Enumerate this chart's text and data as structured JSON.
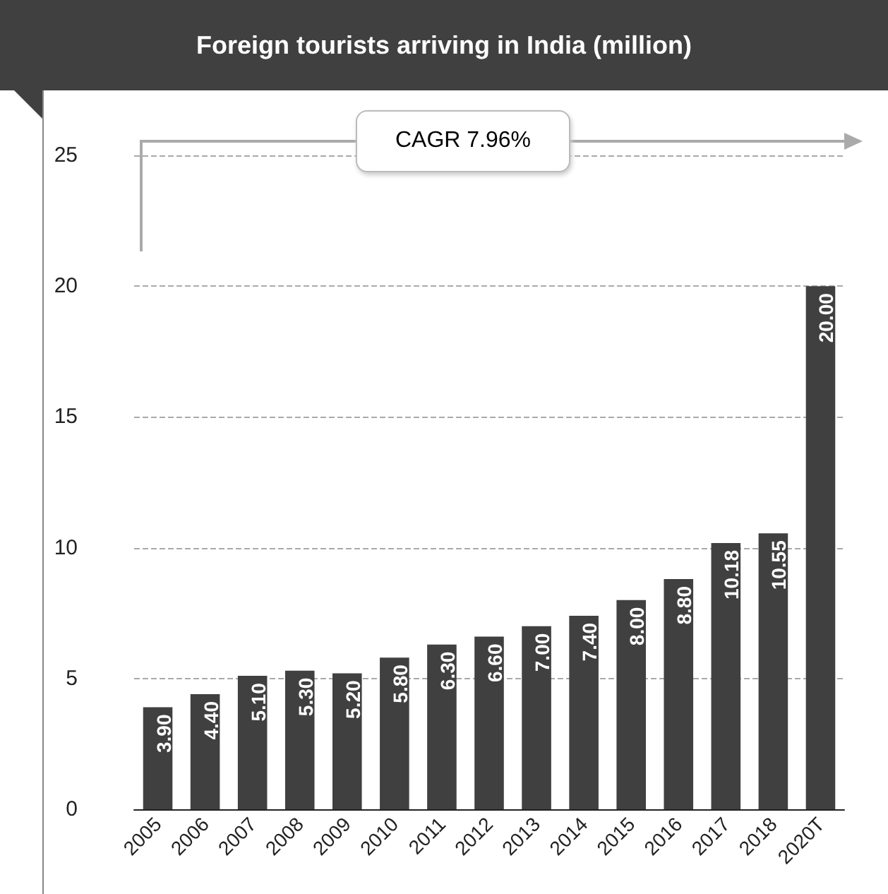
{
  "chart_data": {
    "type": "bar",
    "title": "Foreign tourists arriving in India (million)",
    "categories": [
      "2005",
      "2006",
      "2007",
      "2008",
      "2009",
      "2010",
      "2011",
      "2012",
      "2013",
      "2014",
      "2015",
      "2016",
      "2017",
      "2018",
      "2020T"
    ],
    "values": [
      3.9,
      4.4,
      5.1,
      5.3,
      5.2,
      5.8,
      6.3,
      6.6,
      7.0,
      7.4,
      8.0,
      8.8,
      10.18,
      10.55,
      20.0
    ],
    "value_labels": [
      "3.90",
      "4.40",
      "5.10",
      "5.30",
      "5.20",
      "5.80",
      "6.30",
      "6.60",
      "7.00",
      "7.40",
      "8.00",
      "8.80",
      "10.18",
      "10.55",
      "20.00"
    ],
    "color": "#404040",
    "ylim": [
      0,
      25
    ],
    "yticks": [
      0,
      5,
      10,
      15,
      20,
      25
    ],
    "grid": "y",
    "annotations": [
      "CAGR 7.96%"
    ]
  }
}
